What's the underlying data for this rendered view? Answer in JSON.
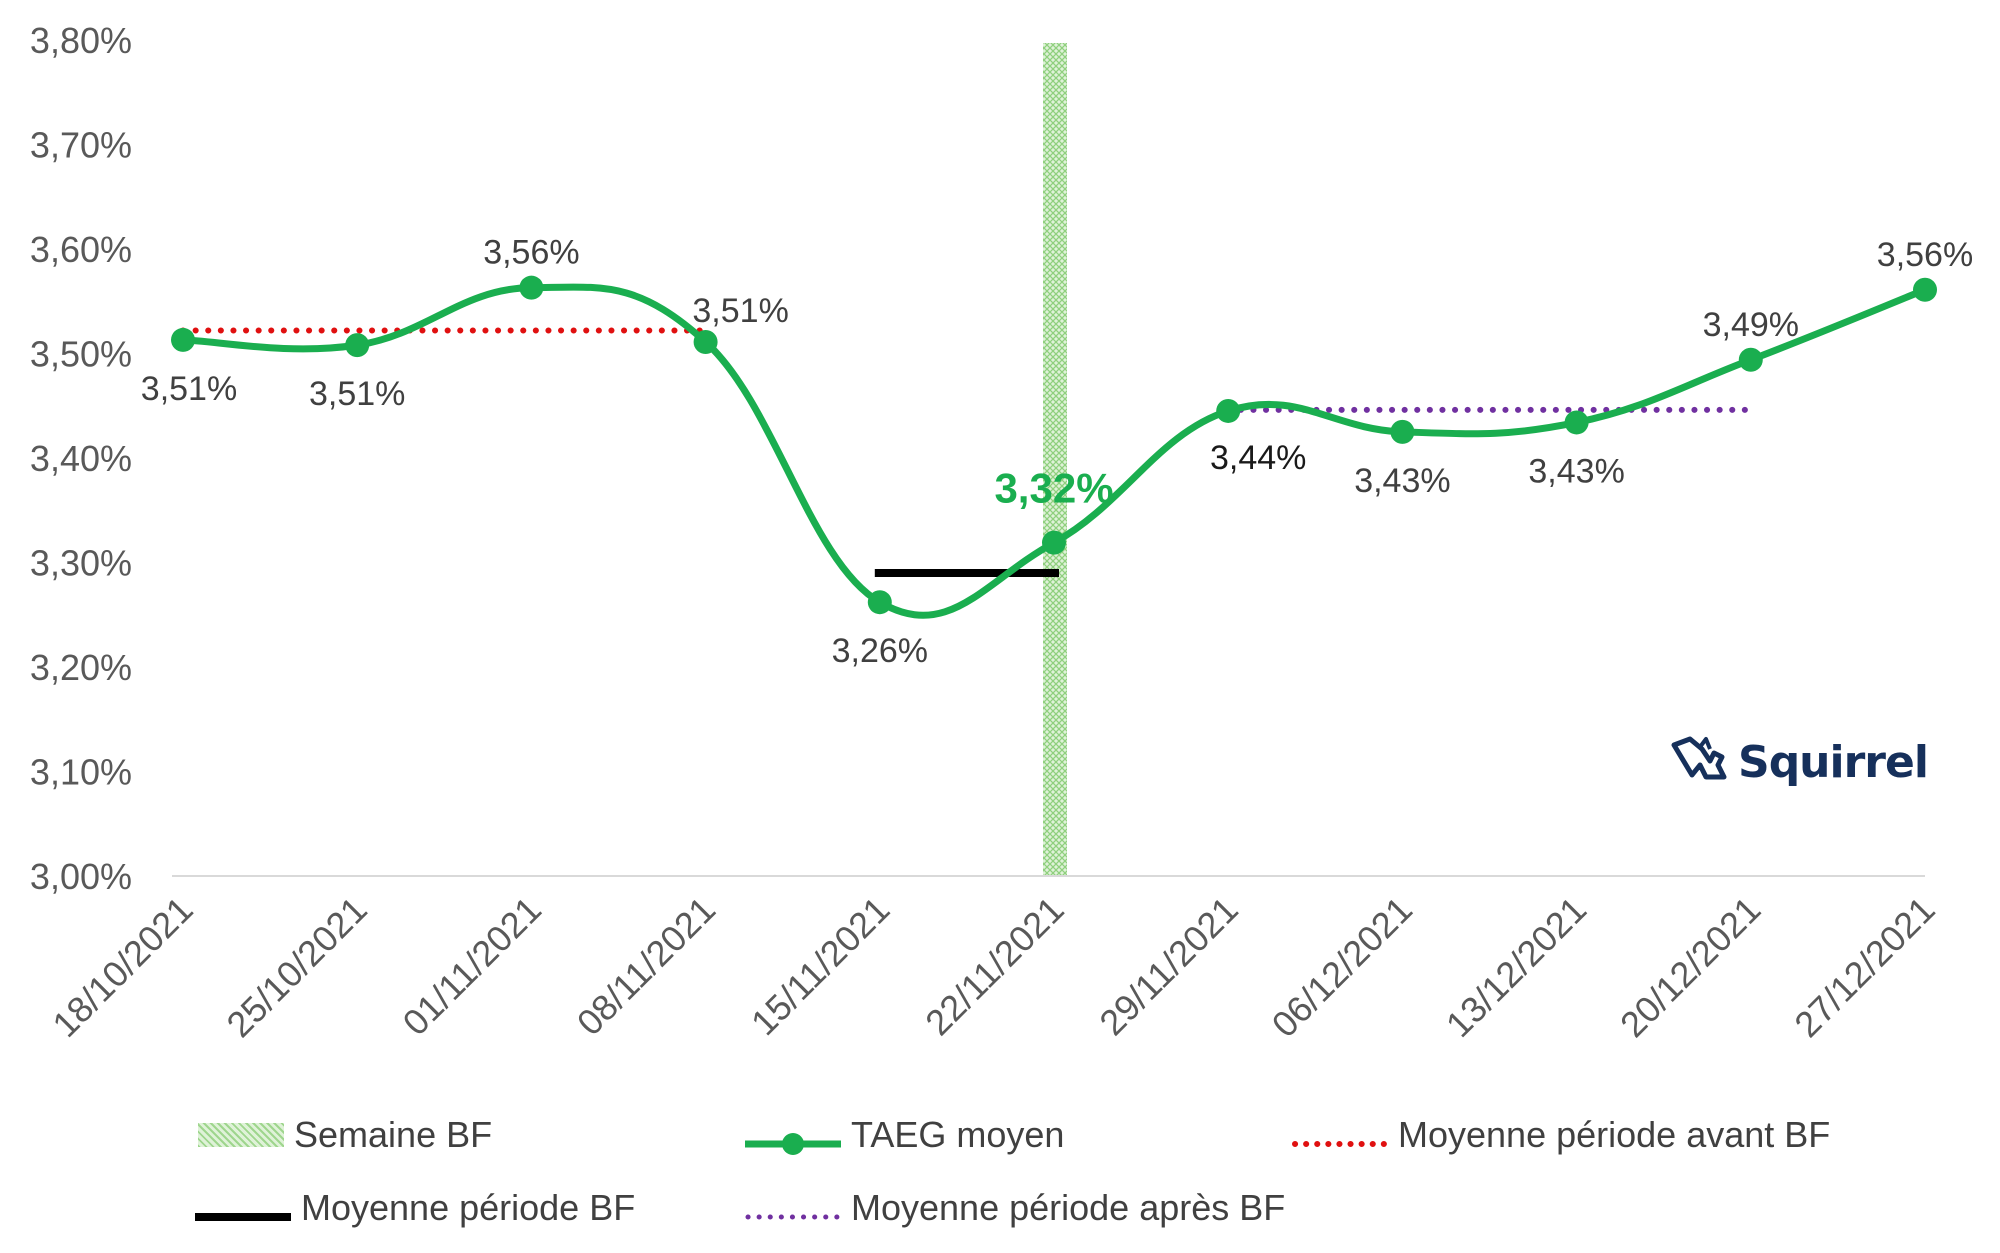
{
  "chart_data": {
    "type": "line",
    "categories": [
      "18/10/2021",
      "25/10/2021",
      "01/11/2021",
      "08/11/2021",
      "15/11/2021",
      "22/11/2021",
      "29/11/2021",
      "06/12/2021",
      "13/12/2021",
      "20/12/2021",
      "27/12/2021"
    ],
    "series": [
      {
        "name": "TAEG moyen",
        "values": [
          3.513,
          3.508,
          3.563,
          3.511,
          3.262,
          3.319,
          3.445,
          3.425,
          3.434,
          3.494,
          3.561
        ],
        "labels": [
          "3,51%",
          "3,51%",
          "3,56%",
          "3,51%",
          "3,26%",
          "3,32%",
          "3,44%",
          "3,43%",
          "3,43%",
          "3,49%",
          "3,56%"
        ],
        "label_positions": [
          "below",
          "below",
          "above",
          "above-right",
          "below",
          "above-bold",
          "below",
          "below",
          "below",
          "above",
          "above"
        ],
        "highlight_index": 5,
        "color": "#1aae4f",
        "highlight_color": "#1aae4f"
      },
      {
        "name": "Moyenne période avant BF",
        "from_index": 0,
        "to_index": 3,
        "value": 3.522,
        "style": "dotted",
        "color": "#e01010"
      },
      {
        "name": "Moyenne période BF",
        "from_index": 4,
        "to_index": 5,
        "value": 3.29,
        "style": "solid",
        "color": "#000000"
      },
      {
        "name": "Moyenne période après BF",
        "from_index": 6,
        "to_index": 9,
        "value": 3.446,
        "style": "dotted",
        "color": "#7030a0"
      },
      {
        "name": "Semaine BF",
        "band_index": 5,
        "style": "hatched-band",
        "color": "#a9dc9b"
      }
    ],
    "y_ticks": [
      "3,00%",
      "3,10%",
      "3,20%",
      "3,30%",
      "3,40%",
      "3,50%",
      "3,60%",
      "3,70%",
      "3,80%"
    ],
    "ylim": [
      3.0,
      3.8
    ],
    "title": "",
    "xlabel": "",
    "ylabel": "",
    "grid": false,
    "legend": [
      {
        "key": "band",
        "label": "Semaine BF"
      },
      {
        "key": "line",
        "label": "TAEG moyen"
      },
      {
        "key": "red",
        "label": "Moyenne période avant BF"
      },
      {
        "key": "black",
        "label": "Moyenne période BF"
      },
      {
        "key": "purple",
        "label": "Moyenne période après BF"
      }
    ],
    "legend_position": "bottom"
  },
  "logo": {
    "name": "Squirrel",
    "color": "#16305b"
  }
}
